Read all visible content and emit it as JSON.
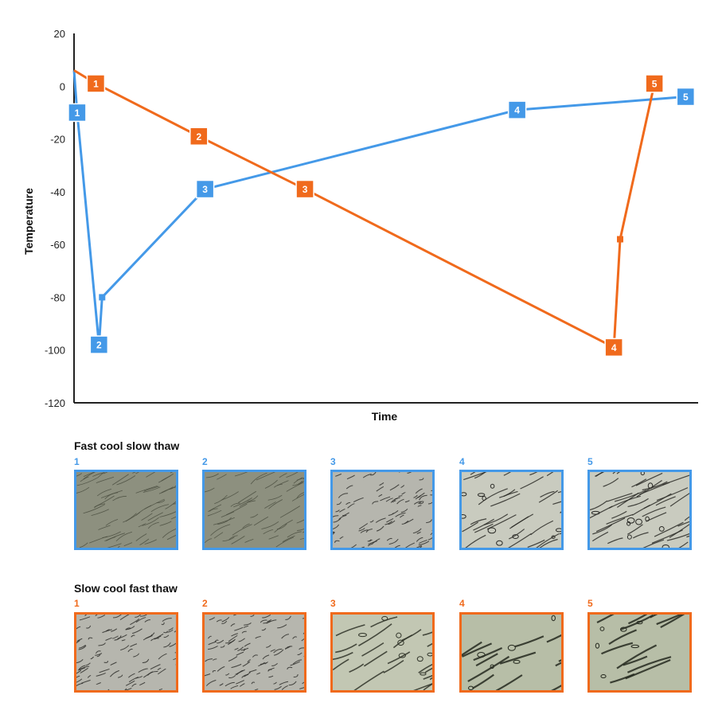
{
  "chart_data": {
    "type": "line",
    "xlabel": "Time",
    "ylabel": "Temperature",
    "ylim": [
      -120,
      20
    ],
    "yticks": [
      20,
      0,
      -20,
      -40,
      -60,
      -80,
      -100,
      -120
    ],
    "grid": false,
    "series": [
      {
        "name": "Fast cool slow thaw",
        "color": "#4499E8",
        "points": [
          {
            "x": 0.0,
            "y": 6
          },
          {
            "x": 0.5,
            "y": -10,
            "label": "1"
          },
          {
            "x": 4.0,
            "y": -98,
            "label": "2"
          },
          {
            "x": 4.5,
            "y": -80
          },
          {
            "x": 21.0,
            "y": -39,
            "label": "3"
          },
          {
            "x": 71.0,
            "y": -9,
            "label": "4"
          },
          {
            "x": 98.0,
            "y": -4,
            "label": "5"
          }
        ]
      },
      {
        "name": "Slow cool fast thaw",
        "color": "#F06A1C",
        "points": [
          {
            "x": 0.0,
            "y": 6
          },
          {
            "x": 3.5,
            "y": 1,
            "label": "1"
          },
          {
            "x": 20.0,
            "y": -19,
            "label": "2"
          },
          {
            "x": 37.0,
            "y": -39,
            "label": "3"
          },
          {
            "x": 86.5,
            "y": -99,
            "label": "4"
          },
          {
            "x": 87.5,
            "y": -58
          },
          {
            "x": 93.0,
            "y": 1,
            "label": "5"
          }
        ]
      }
    ]
  },
  "galleries": [
    {
      "title": "Fast cool slow thaw",
      "color": "#4499E8",
      "images": [
        {
          "label": "1",
          "icon": "micrograph-fine-ice-crystals"
        },
        {
          "label": "2",
          "icon": "micrograph-fine-ice-crystals"
        },
        {
          "label": "3",
          "icon": "micrograph-dense-ice-crystals"
        },
        {
          "label": "4",
          "icon": "micrograph-elongated-ice-crystals"
        },
        {
          "label": "5",
          "icon": "micrograph-elongated-ice-crystals"
        }
      ]
    },
    {
      "title": "Slow cool fast thaw",
      "color": "#F06A1C",
      "images": [
        {
          "label": "1",
          "icon": "micrograph-dense-ice-crystals"
        },
        {
          "label": "2",
          "icon": "micrograph-dense-ice-crystals"
        },
        {
          "label": "3",
          "icon": "micrograph-coarse-ice-crystals"
        },
        {
          "label": "4",
          "icon": "micrograph-large-ice-crystals"
        },
        {
          "label": "5",
          "icon": "micrograph-large-ice-crystals"
        }
      ]
    }
  ]
}
